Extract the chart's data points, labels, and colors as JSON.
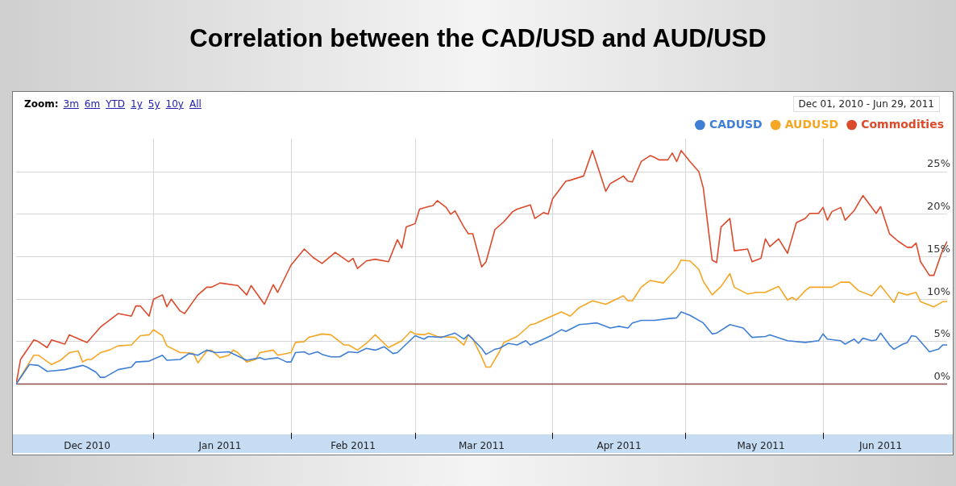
{
  "chart_data": {
    "type": "line",
    "title": "Correlation between the CAD/USD and AUD/USD",
    "annotations": [
      "Zoom: 3m 6m YTD 1y 5y 10y All",
      "Dec 01, 2010 - Jun 29, 2011"
    ],
    "xlim": [
      "2010-12-01",
      "2011-06-29"
    ],
    "xticks": [
      {
        "value": "2010-12-17",
        "label": "Dec 2010"
      },
      {
        "value": "2011-01-01",
        "label": null
      },
      {
        "value": "2011-01-16",
        "label": "Jan 2011"
      },
      {
        "value": "2011-02-01",
        "label": null
      },
      {
        "value": "2011-02-15",
        "label": "Feb 2011"
      },
      {
        "value": "2011-03-01",
        "label": null
      },
      {
        "value": "2011-03-16",
        "label": "Mar 2011"
      },
      {
        "value": "2011-04-01",
        "label": null
      },
      {
        "value": "2011-04-16",
        "label": "Apr 2011"
      },
      {
        "value": "2011-05-01",
        "label": null
      },
      {
        "value": "2011-05-18",
        "label": "May 2011"
      },
      {
        "value": "2011-06-01",
        "label": null
      },
      {
        "value": "2011-06-14",
        "label": "Jun 2011"
      }
    ],
    "ylim": [
      -5.7,
      28.9
    ],
    "yticks": [
      {
        "value": 0,
        "label": "0%"
      },
      {
        "value": 5,
        "label": "5%"
      },
      {
        "value": 10,
        "label": "10%"
      },
      {
        "value": 15,
        "label": "15%"
      },
      {
        "value": 20,
        "label": "20%"
      },
      {
        "value": 25,
        "label": "25%"
      }
    ],
    "grid": true,
    "legend": "top right",
    "marker": "none",
    "ref_lines": [
      {
        "axis": "y",
        "value": 0,
        "color": "#8b4a4a"
      }
    ],
    "series": [
      {
        "name": "CADUSD",
        "color": "#3f7fd6",
        "x": [
          "2010-12-01",
          "2010-12-04",
          "2010-12-06",
          "2010-12-08",
          "2010-12-10",
          "2010-12-12",
          "2010-12-16",
          "2010-12-17",
          "2010-12-19",
          "2010-12-20",
          "2010-12-21",
          "2010-12-24",
          "2010-12-27",
          "2010-12-28",
          "2010-12-31",
          "2011-01-03",
          "2011-01-04",
          "2011-01-07",
          "2011-01-09",
          "2011-01-11",
          "2011-01-13",
          "2011-01-15",
          "2011-01-18",
          "2011-01-22",
          "2011-01-25",
          "2011-01-26",
          "2011-01-29",
          "2011-01-31",
          "2011-02-01",
          "2011-02-02",
          "2011-02-04",
          "2011-02-05",
          "2011-02-07",
          "2011-02-08",
          "2011-02-10",
          "2011-02-12",
          "2011-02-14",
          "2011-02-16",
          "2011-02-18",
          "2011-02-20",
          "2011-02-22",
          "2011-02-24",
          "2011-02-25",
          "2011-03-01",
          "2011-03-03",
          "2011-03-04",
          "2011-03-07",
          "2011-03-10",
          "2011-03-12",
          "2011-03-13",
          "2011-03-14",
          "2011-03-16",
          "2011-03-17",
          "2011-03-19",
          "2011-03-20",
          "2011-03-22",
          "2011-03-24",
          "2011-03-26",
          "2011-03-27",
          "2011-03-30",
          "2011-04-01",
          "2011-04-03",
          "2011-04-04",
          "2011-04-07",
          "2011-04-09",
          "2011-04-11",
          "2011-04-14",
          "2011-04-16",
          "2011-04-18",
          "2011-04-19",
          "2011-04-21",
          "2011-04-24",
          "2011-04-27",
          "2011-04-29",
          "2011-04-30",
          "2011-05-02",
          "2011-05-05",
          "2011-05-07",
          "2011-05-08",
          "2011-05-11",
          "2011-05-14",
          "2011-05-16",
          "2011-05-19",
          "2011-05-20",
          "2011-05-24",
          "2011-05-28",
          "2011-05-31",
          "2011-06-01",
          "2011-06-02",
          "2011-06-05",
          "2011-06-06",
          "2011-06-08",
          "2011-06-09",
          "2011-06-10",
          "2011-06-12",
          "2011-06-13",
          "2011-06-14",
          "2011-06-16",
          "2011-06-17",
          "2011-06-19",
          "2011-06-20",
          "2011-06-21",
          "2011-06-22",
          "2011-06-23",
          "2011-06-25",
          "2011-06-27",
          "2011-06-28",
          "2011-06-29"
        ],
        "values": [
          0,
          2.3,
          2.2,
          1.5,
          1.6,
          1.7,
          2.2,
          2.0,
          1.4,
          0.8,
          0.8,
          1.7,
          2.0,
          2.6,
          2.7,
          3.4,
          2.8,
          2.9,
          3.6,
          3.4,
          4.0,
          3.7,
          3.8,
          2.8,
          3.1,
          2.9,
          3.1,
          2.6,
          2.6,
          3.7,
          3.8,
          3.5,
          3.8,
          3.5,
          3.2,
          3.2,
          3.8,
          3.7,
          4.2,
          4.0,
          4.4,
          3.6,
          3.7,
          5.7,
          5.3,
          5.6,
          5.5,
          6.0,
          5.3,
          5.8,
          5.3,
          4.2,
          3.5,
          4.1,
          4.2,
          4.8,
          4.6,
          5.1,
          4.6,
          5.3,
          5.8,
          6.4,
          6.2,
          7.0,
          7.1,
          7.2,
          6.6,
          6.8,
          6.6,
          7.2,
          7.5,
          7.5,
          7.7,
          7.8,
          8.5,
          8.1,
          7.2,
          5.9,
          6.0,
          7.0,
          6.6,
          5.5,
          5.6,
          5.8,
          5.1,
          4.9,
          5.1,
          5.9,
          5.3,
          5.1,
          4.7,
          5.3,
          4.8,
          5.4,
          5.1,
          5.2,
          6.0,
          4.6,
          4.1,
          4.7,
          4.9,
          5.7,
          5.6,
          5.0,
          3.8,
          4.1,
          4.6,
          4.6
        ]
      },
      {
        "name": "AUDUSD",
        "color": "#f5a623",
        "x": [
          "2010-12-01",
          "2010-12-03",
          "2010-12-05",
          "2010-12-06",
          "2010-12-09",
          "2010-12-11",
          "2010-12-13",
          "2010-12-15",
          "2010-12-16",
          "2010-12-17",
          "2010-12-18",
          "2010-12-20",
          "2010-12-22",
          "2010-12-24",
          "2010-12-27",
          "2010-12-29",
          "2010-12-31",
          "2011-01-01",
          "2011-01-03",
          "2011-01-04",
          "2011-01-07",
          "2011-01-08",
          "2011-01-10",
          "2011-01-11",
          "2011-01-13",
          "2011-01-14",
          "2011-01-16",
          "2011-01-18",
          "2011-01-19",
          "2011-01-20",
          "2011-01-22",
          "2011-01-24",
          "2011-01-25",
          "2011-01-28",
          "2011-01-29",
          "2011-02-01",
          "2011-02-02",
          "2011-02-04",
          "2011-02-05",
          "2011-02-08",
          "2011-02-10",
          "2011-02-13",
          "2011-02-14",
          "2011-02-16",
          "2011-02-18",
          "2011-02-20",
          "2011-02-23",
          "2011-02-26",
          "2011-02-28",
          "2011-03-01",
          "2011-03-03",
          "2011-03-04",
          "2011-03-06",
          "2011-03-10",
          "2011-03-12",
          "2011-03-13",
          "2011-03-14",
          "2011-03-16",
          "2011-03-17",
          "2011-03-18",
          "2011-03-20",
          "2011-03-21",
          "2011-03-24",
          "2011-03-27",
          "2011-03-28",
          "2011-03-31",
          "2011-04-03",
          "2011-04-05",
          "2011-04-07",
          "2011-04-10",
          "2011-04-13",
          "2011-04-17",
          "2011-04-18",
          "2011-04-19",
          "2011-04-21",
          "2011-04-23",
          "2011-04-26",
          "2011-04-27",
          "2011-04-29",
          "2011-04-30",
          "2011-05-02",
          "2011-05-04",
          "2011-05-05",
          "2011-05-07",
          "2011-05-09",
          "2011-05-11",
          "2011-05-12",
          "2011-05-15",
          "2011-05-17",
          "2011-05-19",
          "2011-05-22",
          "2011-05-24",
          "2011-05-25",
          "2011-05-26",
          "2011-05-28",
          "2011-05-29",
          "2011-06-01",
          "2011-06-03",
          "2011-06-05",
          "2011-06-07",
          "2011-06-09",
          "2011-06-12",
          "2011-06-14",
          "2011-06-17",
          "2011-06-18",
          "2011-06-20",
          "2011-06-22",
          "2011-06-23",
          "2011-06-26",
          "2011-06-28",
          "2011-06-29"
        ],
        "values": [
          0,
          1.7,
          3.4,
          3.4,
          2.3,
          2.8,
          3.7,
          3.9,
          2.6,
          2.9,
          2.9,
          3.7,
          4.0,
          4.5,
          4.6,
          5.7,
          5.8,
          6.4,
          5.7,
          4.5,
          3.7,
          3.7,
          3.6,
          2.5,
          3.9,
          4.0,
          3.1,
          3.4,
          4.0,
          3.7,
          2.6,
          2.9,
          3.7,
          4.0,
          3.4,
          3.7,
          4.9,
          5.0,
          5.5,
          5.9,
          5.8,
          4.6,
          4.6,
          4.0,
          4.8,
          5.8,
          4.3,
          5.1,
          6.2,
          5.9,
          5.8,
          6.0,
          5.6,
          5.5,
          4.6,
          5.8,
          5.3,
          3.2,
          2.0,
          2.0,
          3.8,
          4.9,
          5.6,
          7.0,
          7.1,
          7.8,
          8.5,
          8.0,
          9.0,
          9.8,
          9.4,
          10.4,
          9.8,
          9.8,
          11.4,
          12.2,
          11.9,
          12.5,
          13.6,
          14.6,
          14.5,
          13.5,
          12.1,
          10.5,
          11.5,
          13.0,
          11.4,
          10.6,
          10.8,
          10.8,
          11.5,
          9.9,
          10.2,
          9.9,
          11.0,
          11.4,
          11.4,
          11.4,
          12.0,
          12.0,
          11.0,
          10.4,
          11.6,
          9.6,
          10.8,
          10.5,
          10.8,
          9.7,
          9.1,
          9.7,
          9.7
        ]
      },
      {
        "name": "Commodities",
        "color": "#dc4a2c",
        "x": [
          "2010-12-01",
          "2010-12-02",
          "2010-12-05",
          "2010-12-06",
          "2010-12-08",
          "2010-12-09",
          "2010-12-12",
          "2010-12-13",
          "2010-12-17",
          "2010-12-20",
          "2010-12-24",
          "2010-12-27",
          "2010-12-28",
          "2010-12-29",
          "2010-12-31",
          "2011-01-01",
          "2011-01-03",
          "2011-01-04",
          "2011-01-05",
          "2011-01-07",
          "2011-01-08",
          "2011-01-11",
          "2011-01-13",
          "2011-01-14",
          "2011-01-16",
          "2011-01-20",
          "2011-01-22",
          "2011-01-23",
          "2011-01-26",
          "2011-01-28",
          "2011-01-29",
          "2011-02-01",
          "2011-02-04",
          "2011-02-06",
          "2011-02-08",
          "2011-02-11",
          "2011-02-14",
          "2011-02-15",
          "2011-02-16",
          "2011-02-18",
          "2011-02-20",
          "2011-02-23",
          "2011-02-25",
          "2011-02-26",
          "2011-02-27",
          "2011-03-01",
          "2011-03-02",
          "2011-03-04",
          "2011-03-05",
          "2011-03-06",
          "2011-03-08",
          "2011-03-09",
          "2011-03-10",
          "2011-03-12",
          "2011-03-13",
          "2011-03-14",
          "2011-03-16",
          "2011-03-17",
          "2011-03-19",
          "2011-03-21",
          "2011-03-23",
          "2011-03-24",
          "2011-03-27",
          "2011-03-28",
          "2011-03-30",
          "2011-03-31",
          "2011-04-01",
          "2011-04-04",
          "2011-04-05",
          "2011-04-08",
          "2011-04-10",
          "2011-04-13",
          "2011-04-14",
          "2011-04-15",
          "2011-04-17",
          "2011-04-18",
          "2011-04-19",
          "2011-04-21",
          "2011-04-23",
          "2011-04-24",
          "2011-04-25",
          "2011-04-27",
          "2011-04-28",
          "2011-04-29",
          "2011-04-30",
          "2011-05-02",
          "2011-05-04",
          "2011-05-05",
          "2011-05-07",
          "2011-05-08",
          "2011-05-09",
          "2011-05-11",
          "2011-05-12",
          "2011-05-15",
          "2011-05-16",
          "2011-05-18",
          "2011-05-19",
          "2011-05-20",
          "2011-05-22",
          "2011-05-24",
          "2011-05-26",
          "2011-05-28",
          "2011-05-29",
          "2011-05-31",
          "2011-06-01",
          "2011-06-02",
          "2011-06-03",
          "2011-06-05",
          "2011-06-06",
          "2011-06-08",
          "2011-06-10",
          "2011-06-13",
          "2011-06-14",
          "2011-06-16",
          "2011-06-18",
          "2011-06-20",
          "2011-06-21",
          "2011-06-22",
          "2011-06-23",
          "2011-06-25",
          "2011-06-26",
          "2011-06-28",
          "2011-06-29"
        ],
        "values": [
          0,
          2.9,
          5.2,
          5.0,
          4.3,
          5.2,
          4.7,
          5.8,
          4.9,
          6.7,
          8.3,
          8.0,
          9.2,
          9.2,
          8.0,
          10.0,
          10.5,
          9.1,
          10.0,
          8.6,
          8.3,
          10.5,
          11.4,
          11.4,
          11.9,
          11.6,
          10.5,
          11.6,
          9.4,
          11.7,
          10.8,
          14.0,
          15.9,
          14.9,
          14.2,
          15.5,
          14.4,
          14.8,
          13.6,
          14.5,
          14.7,
          14.4,
          17.0,
          16.0,
          18.5,
          18.9,
          20.6,
          20.9,
          21.0,
          21.6,
          20.8,
          20.0,
          20.4,
          18.5,
          17.7,
          17.7,
          13.8,
          14.4,
          18.2,
          19.1,
          20.3,
          20.6,
          21.1,
          19.5,
          20.2,
          20.0,
          21.8,
          23.9,
          24.0,
          24.5,
          27.5,
          22.7,
          23.6,
          23.9,
          24.5,
          23.9,
          23.8,
          26.2,
          26.9,
          26.7,
          26.4,
          26.4,
          27.2,
          26.2,
          27.5,
          26.2,
          25.0,
          23.1,
          14.6,
          14.3,
          18.5,
          19.5,
          15.7,
          15.9,
          14.4,
          14.8,
          17.1,
          16.2,
          17.1,
          15.4,
          19.0,
          19.5,
          20.1,
          20.1,
          20.8,
          19.3,
          20.3,
          20.8,
          19.3,
          20.4,
          22.2,
          20.1,
          20.9,
          17.7,
          16.8,
          16.1,
          16.1,
          16.6,
          14.4,
          12.8,
          12.8,
          15.8,
          16.8
        ]
      }
    ]
  }
}
